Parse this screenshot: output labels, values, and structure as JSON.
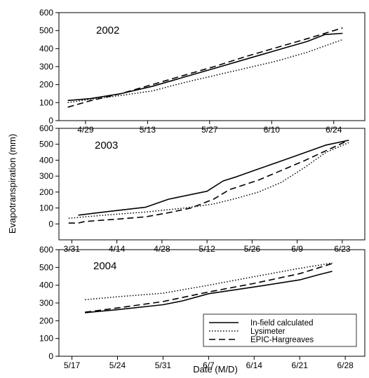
{
  "figure": {
    "ylabel": "Evapotranspiration (mm)",
    "xlabel": "Date (M/D)"
  },
  "legend": {
    "placement": "bottom-right of lowest panel",
    "entries": [
      {
        "label": "In-field calculated",
        "style": "solid"
      },
      {
        "label": "Lysimeter",
        "style": "dotted"
      },
      {
        "label": "EPIC-Hargreaves",
        "style": "dashed"
      }
    ]
  },
  "chart_data": [
    {
      "type": "line",
      "panel_label": "2002",
      "x_type": "date",
      "x_domain": [
        "2002-04-23",
        "2002-07-01"
      ],
      "ylim": [
        0,
        600
      ],
      "y_ticks": [
        0,
        100,
        200,
        300,
        400,
        500,
        600
      ],
      "x_ticks": [
        {
          "label": "4/29",
          "date": "2002-04-29"
        },
        {
          "label": "5/13",
          "date": "2002-05-13"
        },
        {
          "label": "5/27",
          "date": "2002-05-27"
        },
        {
          "label": "6/10",
          "date": "2002-06-10"
        },
        {
          "label": "6/24",
          "date": "2002-06-24"
        }
      ],
      "grid": false,
      "series": [
        {
          "name": "In-field calculated",
          "style": "solid",
          "points": [
            [
              "2002-04-25",
              112
            ],
            [
              "2002-04-30",
              122
            ],
            [
              "2002-05-07",
              150
            ],
            [
              "2002-05-14",
              190
            ],
            [
              "2002-05-21",
              240
            ],
            [
              "2002-05-28",
              290
            ],
            [
              "2002-06-04",
              340
            ],
            [
              "2002-06-11",
              390
            ],
            [
              "2002-06-18",
              440
            ],
            [
              "2002-06-22",
              478
            ],
            [
              "2002-06-26",
              485
            ]
          ]
        },
        {
          "name": "Lysimeter",
          "style": "dotted",
          "points": [
            [
              "2002-04-25",
              100
            ],
            [
              "2002-04-30",
              118
            ],
            [
              "2002-05-07",
              140
            ],
            [
              "2002-05-14",
              165
            ],
            [
              "2002-05-21",
              210
            ],
            [
              "2002-05-28",
              250
            ],
            [
              "2002-06-04",
              290
            ],
            [
              "2002-06-11",
              330
            ],
            [
              "2002-06-18",
              380
            ],
            [
              "2002-06-26",
              450
            ]
          ]
        },
        {
          "name": "EPIC-Hargreaves",
          "style": "dashed",
          "points": [
            [
              "2002-04-25",
              75
            ],
            [
              "2002-04-30",
              110
            ],
            [
              "2002-05-07",
              150
            ],
            [
              "2002-05-14",
              200
            ],
            [
              "2002-05-21",
              250
            ],
            [
              "2002-05-28",
              300
            ],
            [
              "2002-06-04",
              355
            ],
            [
              "2002-06-11",
              405
            ],
            [
              "2002-06-18",
              455
            ],
            [
              "2002-06-26",
              515
            ]
          ]
        }
      ]
    },
    {
      "type": "line",
      "panel_label": "2003",
      "x_type": "date",
      "x_domain": [
        "2003-03-27",
        "2003-06-30"
      ],
      "ylim": [
        -100,
        600
      ],
      "y_ticks": [
        0,
        100,
        200,
        300,
        400,
        500,
        600
      ],
      "x_ticks": [
        {
          "label": "3/31",
          "date": "2003-03-31"
        },
        {
          "label": "4/14",
          "date": "2003-04-14"
        },
        {
          "label": "4/28",
          "date": "2003-04-28"
        },
        {
          "label": "5/12",
          "date": "2003-05-12"
        },
        {
          "label": "5/26",
          "date": "2003-05-26"
        },
        {
          "label": "6/9",
          "date": "2003-06-09"
        },
        {
          "label": "6/23",
          "date": "2003-06-23"
        }
      ],
      "grid": false,
      "series": [
        {
          "name": "In-field calculated",
          "style": "solid",
          "points": [
            [
              "2003-04-02",
              55
            ],
            [
              "2003-04-10",
              75
            ],
            [
              "2003-04-23",
              105
            ],
            [
              "2003-04-30",
              155
            ],
            [
              "2003-05-12",
              205
            ],
            [
              "2003-05-17",
              270
            ],
            [
              "2003-05-21",
              295
            ],
            [
              "2003-05-28",
              345
            ],
            [
              "2003-06-04",
              395
            ],
            [
              "2003-06-11",
              445
            ],
            [
              "2003-06-18",
              495
            ],
            [
              "2003-06-25",
              525
            ]
          ]
        },
        {
          "name": "Lysimeter",
          "style": "dotted",
          "points": [
            [
              "2003-03-30",
              35
            ],
            [
              "2003-04-10",
              55
            ],
            [
              "2003-04-23",
              75
            ],
            [
              "2003-05-05",
              100
            ],
            [
              "2003-05-14",
              125
            ],
            [
              "2003-05-21",
              160
            ],
            [
              "2003-05-28",
              200
            ],
            [
              "2003-06-04",
              260
            ],
            [
              "2003-06-11",
              350
            ],
            [
              "2003-06-18",
              450
            ],
            [
              "2003-06-25",
              510
            ]
          ]
        },
        {
          "name": "EPIC-Hargreaves",
          "style": "dashed",
          "points": [
            [
              "2003-03-30",
              5
            ],
            [
              "2003-04-02",
              5
            ],
            [
              "2003-04-04",
              15
            ],
            [
              "2003-04-14",
              30
            ],
            [
              "2003-04-23",
              45
            ],
            [
              "2003-04-30",
              70
            ],
            [
              "2003-05-07",
              100
            ],
            [
              "2003-05-14",
              155
            ],
            [
              "2003-05-19",
              215
            ],
            [
              "2003-05-28",
              275
            ],
            [
              "2003-06-04",
              335
            ],
            [
              "2003-06-11",
              395
            ],
            [
              "2003-06-18",
              460
            ],
            [
              "2003-06-25",
              525
            ]
          ]
        }
      ]
    },
    {
      "type": "line",
      "panel_label": "2004",
      "x_type": "date",
      "x_domain": [
        "2004-05-15",
        "2004-07-01"
      ],
      "ylim": [
        0,
        600
      ],
      "y_ticks": [
        0,
        100,
        200,
        300,
        400,
        500,
        600
      ],
      "x_ticks": [
        {
          "label": "5/17",
          "date": "2004-05-17"
        },
        {
          "label": "5/24",
          "date": "2004-05-24"
        },
        {
          "label": "5/31",
          "date": "2004-05-31"
        },
        {
          "label": "6/7",
          "date": "2004-06-07"
        },
        {
          "label": "6/14",
          "date": "2004-06-14"
        },
        {
          "label": "6/21",
          "date": "2004-06-21"
        },
        {
          "label": "6/28",
          "date": "2004-06-28"
        }
      ],
      "grid": false,
      "series": [
        {
          "name": "In-field calculated",
          "style": "solid",
          "points": [
            [
              "2004-05-19",
              245
            ],
            [
              "2004-05-24",
              262
            ],
            [
              "2004-05-31",
              290
            ],
            [
              "2004-06-03",
              312
            ],
            [
              "2004-06-07",
              352
            ],
            [
              "2004-06-14",
              390
            ],
            [
              "2004-06-21",
              430
            ],
            [
              "2004-06-24",
              460
            ],
            [
              "2004-06-26",
              478
            ]
          ]
        },
        {
          "name": "Lysimeter",
          "style": "dotted",
          "points": [
            [
              "2004-05-19",
              318
            ],
            [
              "2004-05-24",
              335
            ],
            [
              "2004-05-31",
              355
            ],
            [
              "2004-06-07",
              400
            ],
            [
              "2004-06-14",
              448
            ],
            [
              "2004-06-21",
              495
            ],
            [
              "2004-06-26",
              525
            ]
          ]
        },
        {
          "name": "EPIC-Hargreaves",
          "style": "dashed",
          "points": [
            [
              "2004-05-19",
              248
            ],
            [
              "2004-05-24",
              272
            ],
            [
              "2004-05-31",
              308
            ],
            [
              "2004-06-07",
              362
            ],
            [
              "2004-06-14",
              410
            ],
            [
              "2004-06-21",
              465
            ],
            [
              "2004-06-26",
              522
            ]
          ]
        }
      ]
    }
  ]
}
